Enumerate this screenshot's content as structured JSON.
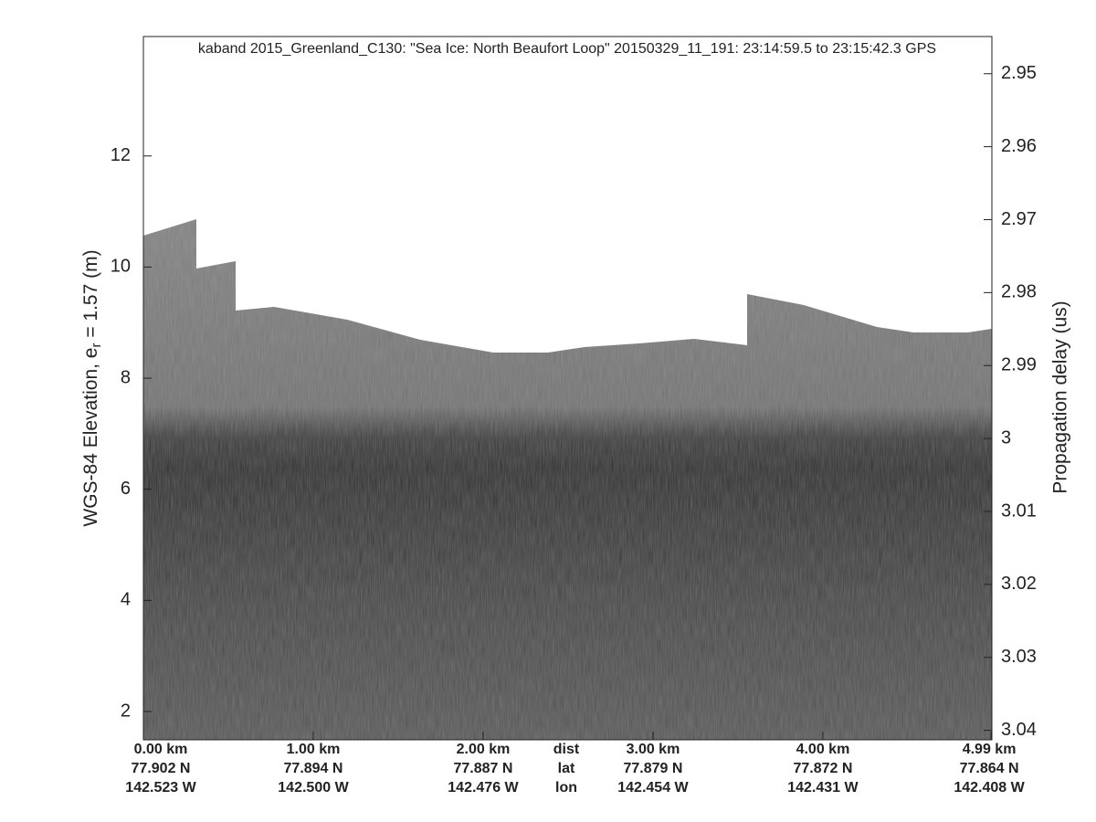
{
  "chart_data": {
    "type": "echogram",
    "title": "kaband 2015_Greenland_C130: \"Sea Ice: North Beaufort Loop\"  20150329_11_191: 23:14:59.5 to 23:15:42.3 GPS",
    "ylabel": "WGS-84 Elevation, e",
    "ylabel_sub": "r",
    "ylabel_tail": " = 1.57 (m)",
    "y2label": "Propagation delay (us)",
    "ylim": [
      1.49,
      14.15
    ],
    "yticks": [
      2,
      4,
      6,
      8,
      10,
      12
    ],
    "y2lim": [
      3.0413,
      2.9449
    ],
    "y2ticks": [
      2.95,
      2.96,
      2.97,
      2.98,
      2.99,
      3,
      3.01,
      3.02,
      3.03,
      3.04
    ],
    "xlim": [
      0,
      4.995
    ],
    "xticks": [
      {
        "value": 0,
        "label": "0.00 km"
      },
      {
        "value": 1,
        "label": "1.00 km"
      },
      {
        "value": 2,
        "label": "2.00 km"
      },
      {
        "value": 3,
        "label": "3.00 km"
      },
      {
        "value": 4,
        "label": "4.00 km"
      },
      {
        "value": 4.99,
        "label": "4.99 km"
      }
    ],
    "lat_labels": [
      "77.902 N",
      "77.894 N",
      "77.887 N",
      "77.879 N",
      "77.872 N",
      "77.864 N"
    ],
    "lon_labels": [
      "142.523 W",
      "142.500 W",
      "142.476 W",
      "142.454 W",
      "142.431 W",
      "142.408 W"
    ],
    "row_labels": [
      "dist",
      "lat",
      "lon"
    ]
  }
}
